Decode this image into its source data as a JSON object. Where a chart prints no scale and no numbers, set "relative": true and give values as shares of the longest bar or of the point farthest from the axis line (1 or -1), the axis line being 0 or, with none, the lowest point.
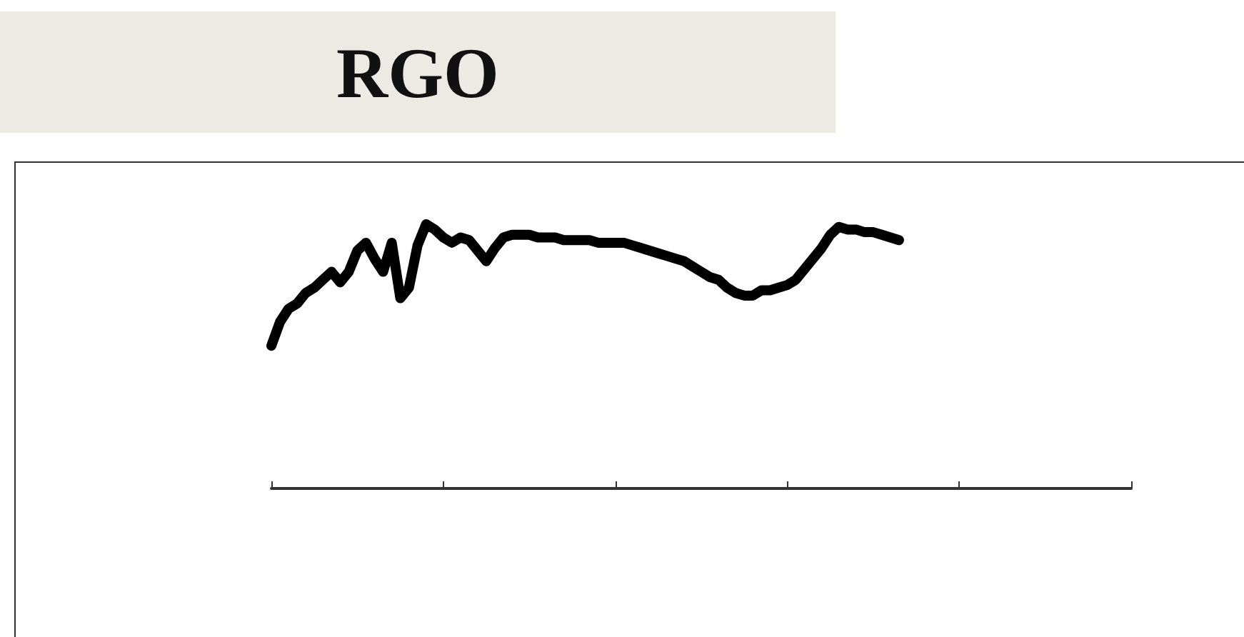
{
  "chart_data": {
    "type": "line",
    "title": "RGO",
    "relative": true,
    "color": "#000000",
    "grid": false,
    "categories": [
      null,
      null,
      null,
      null,
      null,
      null,
      null,
      null,
      null,
      null,
      null,
      null,
      null,
      null,
      null,
      null,
      null,
      null,
      null,
      null,
      null,
      null,
      null,
      null,
      null,
      null,
      null,
      null,
      null,
      null,
      null,
      null,
      null,
      null,
      null,
      null,
      null,
      null,
      null,
      null,
      null,
      null,
      null,
      null,
      null,
      null,
      null,
      null,
      null,
      null,
      null,
      null,
      null,
      null,
      null,
      null,
      null,
      null,
      null,
      null,
      null,
      null,
      null,
      null,
      null,
      null,
      null,
      null,
      null,
      null,
      null,
      null,
      null,
      null,
      null,
      null,
      null,
      null,
      null,
      null,
      null,
      null,
      null,
      null,
      null,
      null,
      null,
      null,
      null,
      null,
      null,
      null,
      null,
      null,
      null,
      null,
      null,
      null,
      null,
      null,
      null
    ],
    "values": [
      0.54,
      0.63,
      0.68,
      0.7,
      0.74,
      0.76,
      0.79,
      0.82,
      0.78,
      0.82,
      0.9,
      0.93,
      0.87,
      0.82,
      0.93,
      0.72,
      0.76,
      0.92,
      1.0,
      0.98,
      0.95,
      0.93,
      0.95,
      0.94,
      0.9,
      0.86,
      0.91,
      0.95,
      0.96,
      0.96,
      0.96,
      0.95,
      0.95,
      0.95,
      0.94,
      0.94,
      0.94,
      0.94,
      0.93,
      0.93,
      0.93,
      0.93,
      0.92,
      0.91,
      0.9,
      0.89,
      0.88,
      0.87,
      0.86,
      0.84,
      0.82,
      0.8,
      0.79,
      0.76,
      0.74,
      0.73,
      0.73,
      0.75,
      0.75,
      0.76,
      0.77,
      0.79,
      0.83,
      0.87,
      0.91,
      0.96,
      0.99,
      0.98,
      0.98,
      0.97,
      0.97,
      0.96,
      0.95,
      0.94,
      null,
      null,
      null,
      null,
      null,
      null,
      null,
      null,
      null,
      null,
      null,
      null,
      null,
      null,
      null,
      null,
      null,
      null,
      null,
      null,
      null,
      null,
      null,
      null,
      null,
      null,
      null
    ]
  }
}
